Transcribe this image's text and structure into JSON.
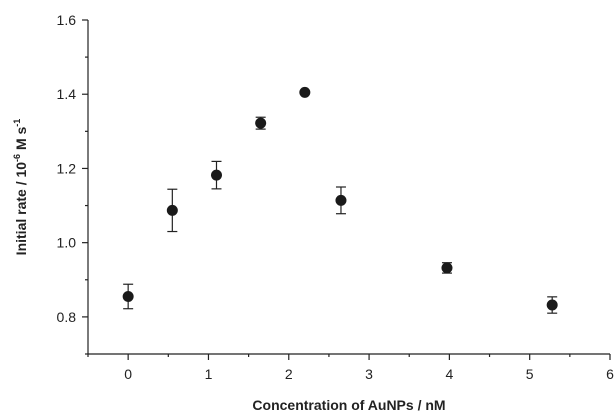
{
  "chart_data": {
    "type": "scatter",
    "title": "",
    "xlabel": "Concentration of AuNPs / nM",
    "ylabel_parts": [
      "Initial rate / 10",
      "-6",
      " M s",
      "-1"
    ],
    "xlim": [
      -0.5,
      6
    ],
    "ylim": [
      0.7,
      1.6
    ],
    "xticks": [
      0,
      1,
      2,
      3,
      4,
      5,
      6
    ],
    "yticks": [
      0.8,
      1.0,
      1.2,
      1.4,
      1.6
    ],
    "x_tick_labels": [
      "0",
      "1",
      "2",
      "3",
      "4",
      "5",
      "6"
    ],
    "y_tick_labels": [
      "0.8",
      "1.0",
      "1.2",
      "1.4",
      "1.6"
    ],
    "grid": false,
    "points": [
      {
        "x": 0.0,
        "y": 0.855,
        "err": 0.033
      },
      {
        "x": 0.55,
        "y": 1.087,
        "err": 0.057
      },
      {
        "x": 1.1,
        "y": 1.182,
        "err": 0.037
      },
      {
        "x": 1.65,
        "y": 1.322,
        "err": 0.016
      },
      {
        "x": 2.2,
        "y": 1.405,
        "err": 0.0
      },
      {
        "x": 2.65,
        "y": 1.114,
        "err": 0.036
      },
      {
        "x": 3.97,
        "y": 0.932,
        "err": 0.014
      },
      {
        "x": 5.28,
        "y": 0.832,
        "err": 0.022
      }
    ]
  }
}
